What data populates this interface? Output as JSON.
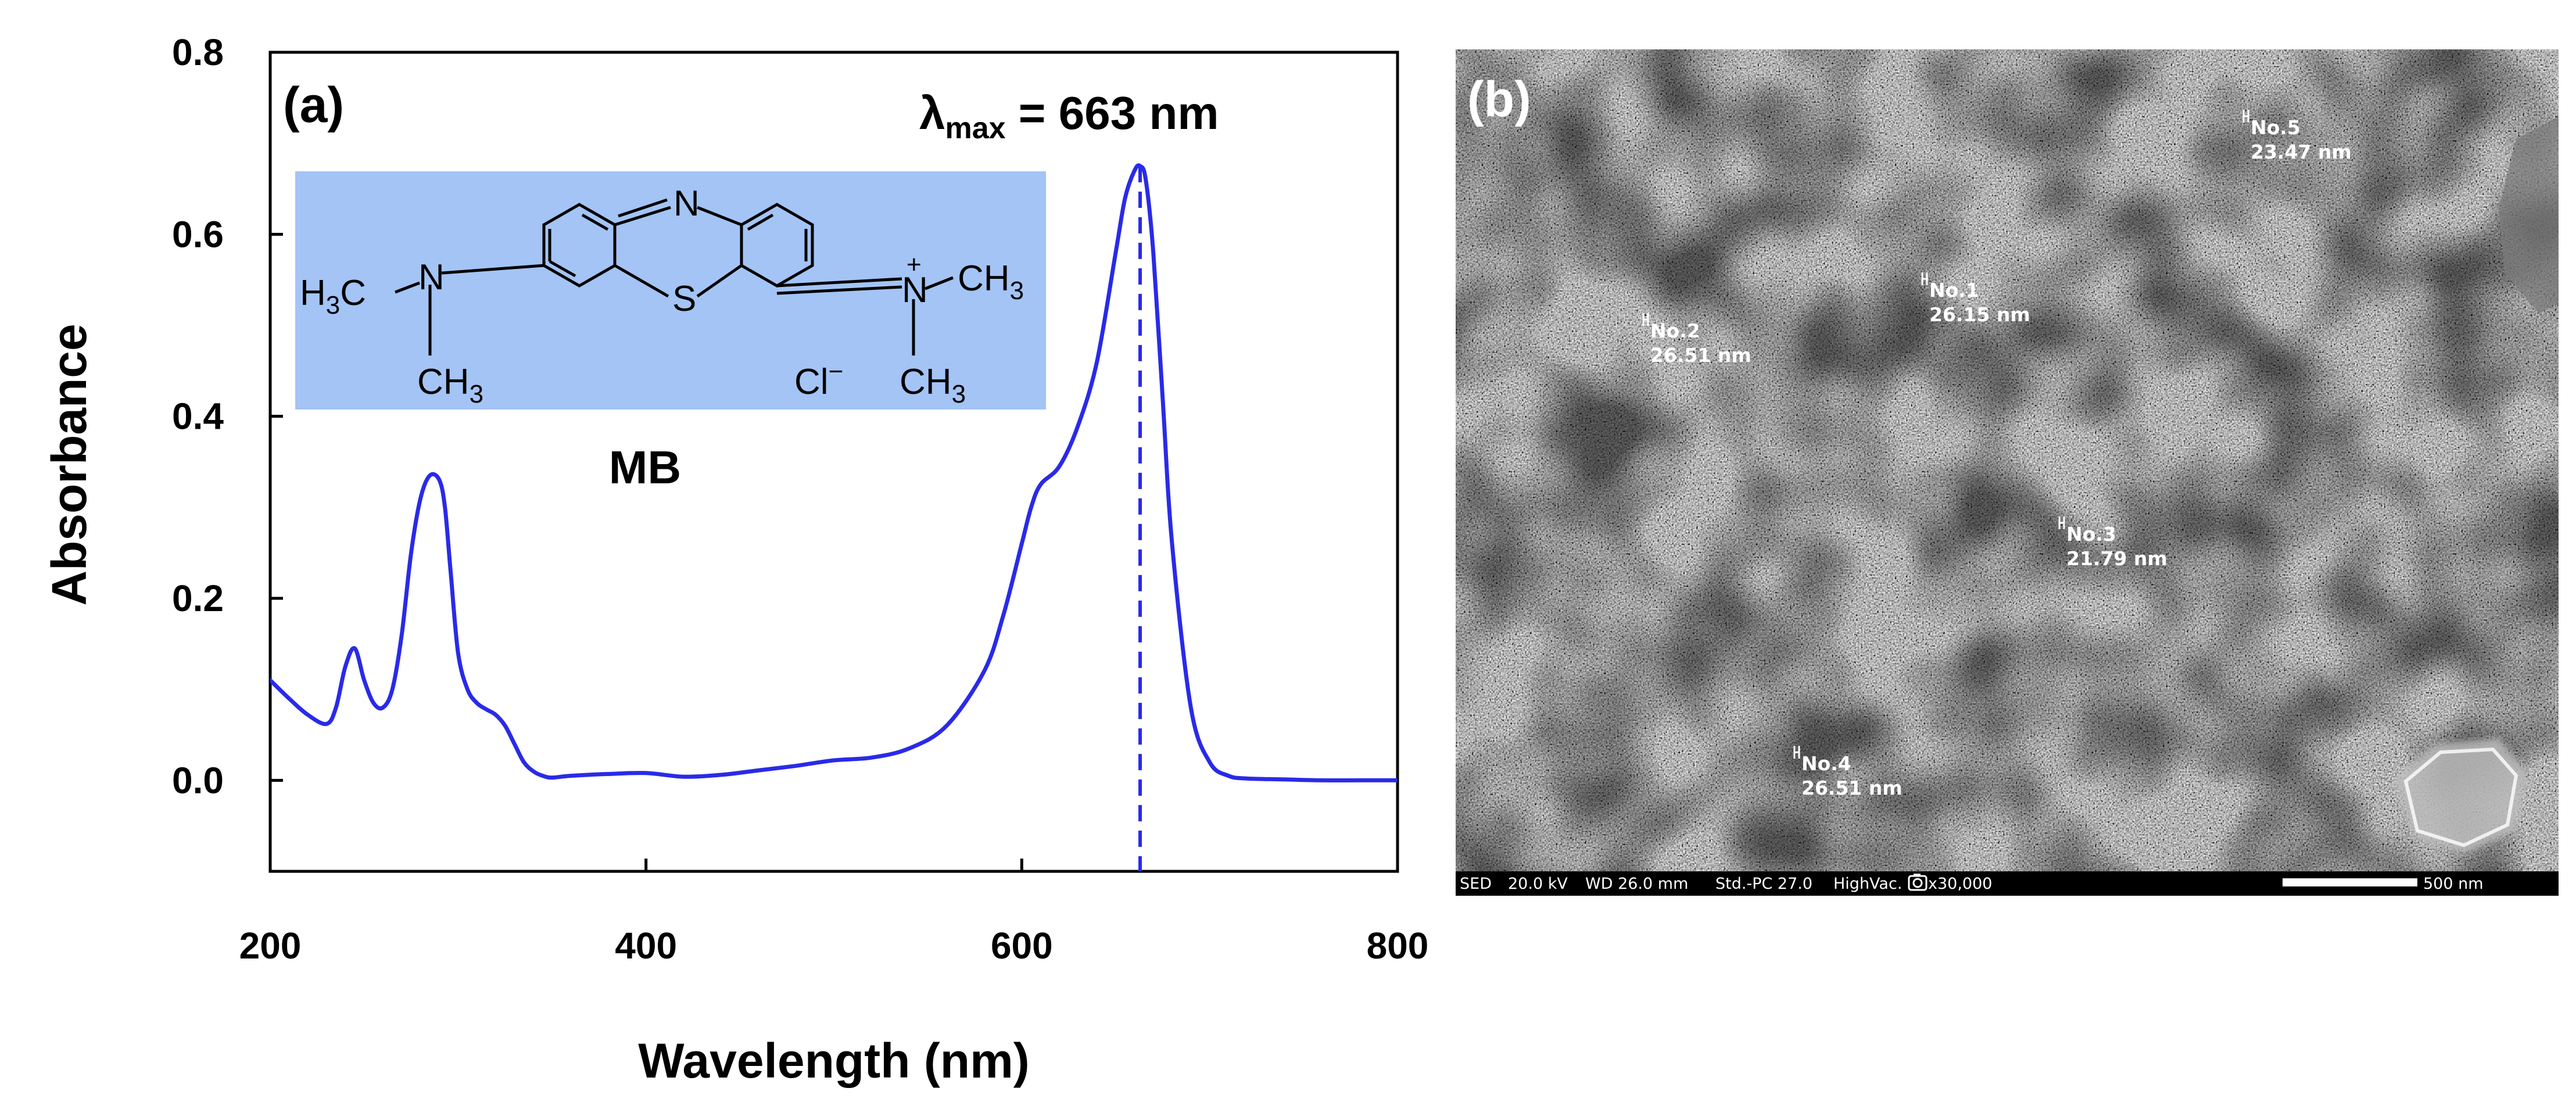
{
  "chart_data": [
    {
      "type": "line",
      "panel_label": "(a)",
      "xlabel": "Wavelength (nm)",
      "ylabel": "Absorbance",
      "xlim": [
        200,
        800
      ],
      "ylim": [
        -0.1,
        0.8
      ],
      "xticks": [
        200,
        400,
        600,
        800
      ],
      "xtick_labels": [
        "200",
        "400",
        "600",
        "800"
      ],
      "yticks": [
        0.0,
        0.2,
        0.4,
        0.6,
        0.8
      ],
      "ytick_labels": [
        "0.0",
        "0.2",
        "0.4",
        "0.6",
        "0.8"
      ],
      "series": [
        {
          "name": "MB absorbance",
          "color": "#2a2ae8",
          "x": [
            200,
            210,
            220,
            230,
            235,
            240,
            245,
            250,
            255,
            260,
            265,
            270,
            275,
            280,
            285,
            290,
            293,
            296,
            300,
            305,
            310,
            315,
            320,
            325,
            330,
            335,
            340,
            345,
            350,
            360,
            380,
            400,
            420,
            440,
            460,
            480,
            500,
            520,
            540,
            560,
            580,
            590,
            600,
            605,
            610,
            620,
            630,
            640,
            650,
            655,
            660,
            663,
            666,
            670,
            675,
            680,
            690,
            700,
            710,
            720,
            740,
            760,
            780,
            800
          ],
          "y": [
            0.11,
            0.09,
            0.072,
            0.062,
            0.08,
            0.125,
            0.145,
            0.11,
            0.085,
            0.08,
            0.1,
            0.16,
            0.25,
            0.31,
            0.335,
            0.33,
            0.3,
            0.23,
            0.14,
            0.1,
            0.085,
            0.078,
            0.072,
            0.06,
            0.04,
            0.02,
            0.01,
            0.005,
            0.003,
            0.005,
            0.007,
            0.008,
            0.004,
            0.006,
            0.011,
            0.016,
            0.022,
            0.025,
            0.035,
            0.06,
            0.12,
            0.18,
            0.26,
            0.3,
            0.325,
            0.345,
            0.39,
            0.46,
            0.58,
            0.64,
            0.67,
            0.675,
            0.66,
            0.58,
            0.42,
            0.26,
            0.08,
            0.02,
            0.005,
            0.002,
            0.001,
            0.0,
            0.0,
            0.0
          ]
        }
      ],
      "annotations": {
        "lambda_max_value": 663,
        "lambda_symbol": "λ",
        "lambda_subscript": "max",
        "lambda_rest": " = 663 nm",
        "dashed_line_color": "#2a2ae8",
        "structure_name": "MB",
        "structure_box_color": "#a3c4f5",
        "structure_atoms": {
          "n_top": "N",
          "s_bottom": "S",
          "n_left": "N",
          "n_right": "N",
          "n_plus": "+",
          "h3c_main": "H",
          "h3c_sub": "3",
          "h3c_tail": "C",
          "ch_main": "CH",
          "ch_sub": "3",
          "cl": "Cl",
          "cl_charge": "−"
        }
      }
    }
  ],
  "sem_panel": {
    "panel_label": "(b)",
    "measurements": [
      {
        "id": "No.1",
        "value": "26.15 nm"
      },
      {
        "id": "No.2",
        "value": "26.51 nm"
      },
      {
        "id": "No.3",
        "value": "21.79 nm"
      },
      {
        "id": "No.4",
        "value": "26.51 nm"
      },
      {
        "id": "No.5",
        "value": "23.47 nm"
      }
    ],
    "info_bar": {
      "detector": "SED",
      "voltage": "20.0 kV",
      "wd": "WD 26.0 mm",
      "std": "Std.-PC 27.0",
      "vac": "HighVac.",
      "mag": "x30,000",
      "scale": "500 nm"
    }
  }
}
